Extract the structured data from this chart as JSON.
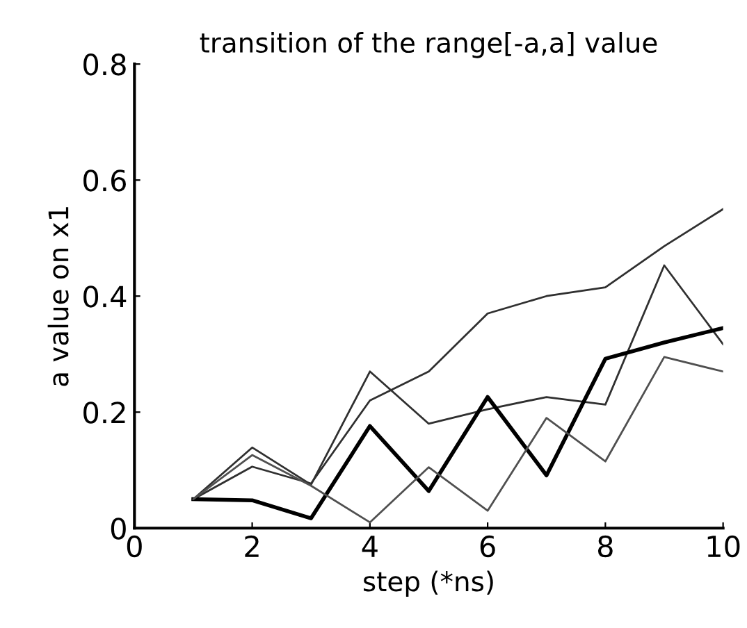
{
  "chart_data": {
    "type": "line",
    "title": "transition of the range[-a,a] value",
    "xlabel": "step (*ns)",
    "ylabel": "a value on x1",
    "x": [
      1,
      2,
      3,
      4,
      5,
      6,
      7,
      8,
      9,
      10
    ],
    "series": [
      {
        "color": "#303030",
        "values": [
          0.05,
          0.106,
          0.077,
          0.22,
          0.27,
          0.37,
          0.4,
          0.415,
          0.486,
          0.55
        ]
      },
      {
        "color": "#303030",
        "values": [
          0.05,
          0.139,
          0.075,
          0.27,
          0.18,
          0.205,
          0.226,
          0.213,
          0.453,
          0.317
        ]
      },
      {
        "color": "#000000",
        "values": [
          0.05,
          0.048,
          0.017,
          0.176,
          0.064,
          0.226,
          0.091,
          0.292,
          0.32,
          0.345
        ]
      },
      {
        "color": "#505050",
        "values": [
          0.05,
          0.126,
          0.073,
          0.01,
          0.105,
          0.03,
          0.19,
          0.115,
          0.295,
          0.27
        ]
      }
    ],
    "xlim": [
      0,
      10
    ],
    "xticks": [
      0,
      2,
      4,
      6,
      8,
      10
    ],
    "ylim": [
      0,
      0.8
    ],
    "yticks": [
      0,
      0.2,
      0.4,
      0.6,
      0.8
    ],
    "grid": false,
    "legend": false,
    "marker": "none",
    "line_style": "solid"
  }
}
